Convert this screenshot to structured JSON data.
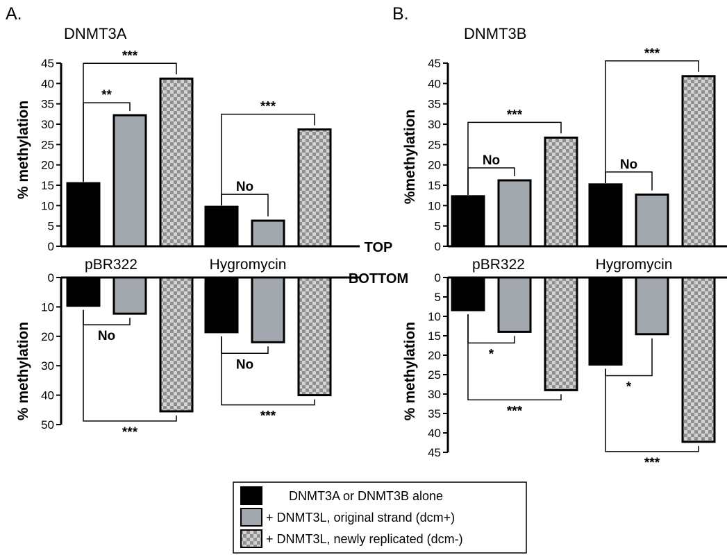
{
  "strand_labels": {
    "top": "TOP",
    "bottom": "BOTTOM"
  },
  "legend": [
    {
      "label": "DNMT3A or DNMT3B alone",
      "fill": "#000000"
    },
    {
      "label": "+ DNMT3L, original strand (dcm+)",
      "fill": "#a3a7ae"
    },
    {
      "label": "+ DNMT3L, newly replicated (dcm-)",
      "fill": "checker"
    }
  ],
  "colors": {
    "alone": "#000000",
    "original": "#a3a7ae",
    "newly": "checker",
    "checker_dark": "#8f8f8f",
    "checker_light": "#d2d2d2"
  },
  "chart_data": [
    {
      "type": "bar",
      "panel": "A.",
      "title": "DNMT3A",
      "categories": [
        "pBR322",
        "Hygromycin"
      ],
      "ylabel_top": "% methylation",
      "ylabel_bottom": "% methylation",
      "top": {
        "ylim": [
          0,
          45
        ],
        "ticks": [
          0,
          5,
          10,
          15,
          20,
          25,
          30,
          35,
          40,
          45
        ],
        "series": [
          {
            "values": [
              15.5,
              9.7
            ]
          },
          {
            "values": [
              32.2,
              6.3
            ]
          },
          {
            "values": [
              41.2,
              28.7
            ]
          }
        ],
        "significance": [
          {
            "category": 0,
            "from": 0,
            "to": 1,
            "label": "**"
          },
          {
            "category": 0,
            "from": 0,
            "to": 2,
            "label": "***"
          },
          {
            "category": 1,
            "from": 0,
            "to": 1,
            "label": "No"
          },
          {
            "category": 1,
            "from": 0,
            "to": 2,
            "label": "***"
          }
        ]
      },
      "bottom": {
        "ylim": [
          0,
          50
        ],
        "ticks": [
          0,
          10,
          20,
          30,
          40,
          50
        ],
        "series": [
          {
            "values": [
              9.6,
              18.6
            ]
          },
          {
            "values": [
              12.3,
              22.0
            ]
          },
          {
            "values": [
              45.5,
              40.0
            ]
          }
        ],
        "significance": [
          {
            "category": 0,
            "from": 0,
            "to": 1,
            "label": "No"
          },
          {
            "category": 0,
            "from": 0,
            "to": 2,
            "label": "***"
          },
          {
            "category": 1,
            "from": 0,
            "to": 1,
            "label": "No"
          },
          {
            "category": 1,
            "from": 0,
            "to": 2,
            "label": "***"
          }
        ]
      }
    },
    {
      "type": "bar",
      "panel": "B.",
      "title": "DNMT3B",
      "categories": [
        "pBR322",
        "Hygromycin"
      ],
      "ylabel_top": "%methylation",
      "ylabel_bottom": "% methylation",
      "top": {
        "ylim": [
          0,
          45
        ],
        "ticks": [
          0,
          5,
          10,
          15,
          20,
          25,
          30,
          35,
          40,
          45
        ],
        "series": [
          {
            "values": [
              12.3,
              15.2
            ]
          },
          {
            "values": [
              16.2,
              12.7
            ]
          },
          {
            "values": [
              26.7,
              41.8
            ]
          }
        ],
        "significance": [
          {
            "category": 0,
            "from": 0,
            "to": 1,
            "label": "No"
          },
          {
            "category": 0,
            "from": 0,
            "to": 2,
            "label": "***"
          },
          {
            "category": 1,
            "from": 0,
            "to": 1,
            "label": "No"
          },
          {
            "category": 1,
            "from": 0,
            "to": 2,
            "label": "***"
          }
        ]
      },
      "bottom": {
        "ylim": [
          0,
          45
        ],
        "ticks": [
          0,
          5,
          10,
          15,
          20,
          25,
          30,
          35,
          40,
          45
        ],
        "series": [
          {
            "values": [
              8.4,
              22.4
            ]
          },
          {
            "values": [
              14.0,
              14.6
            ]
          },
          {
            "values": [
              29.0,
              42.3
            ]
          }
        ],
        "significance": [
          {
            "category": 0,
            "from": 0,
            "to": 1,
            "label": "*"
          },
          {
            "category": 0,
            "from": 0,
            "to": 2,
            "label": "***"
          },
          {
            "category": 1,
            "from": 0,
            "to": 1,
            "label": "*"
          },
          {
            "category": 1,
            "from": 0,
            "to": 2,
            "label": "***"
          }
        ]
      }
    }
  ]
}
